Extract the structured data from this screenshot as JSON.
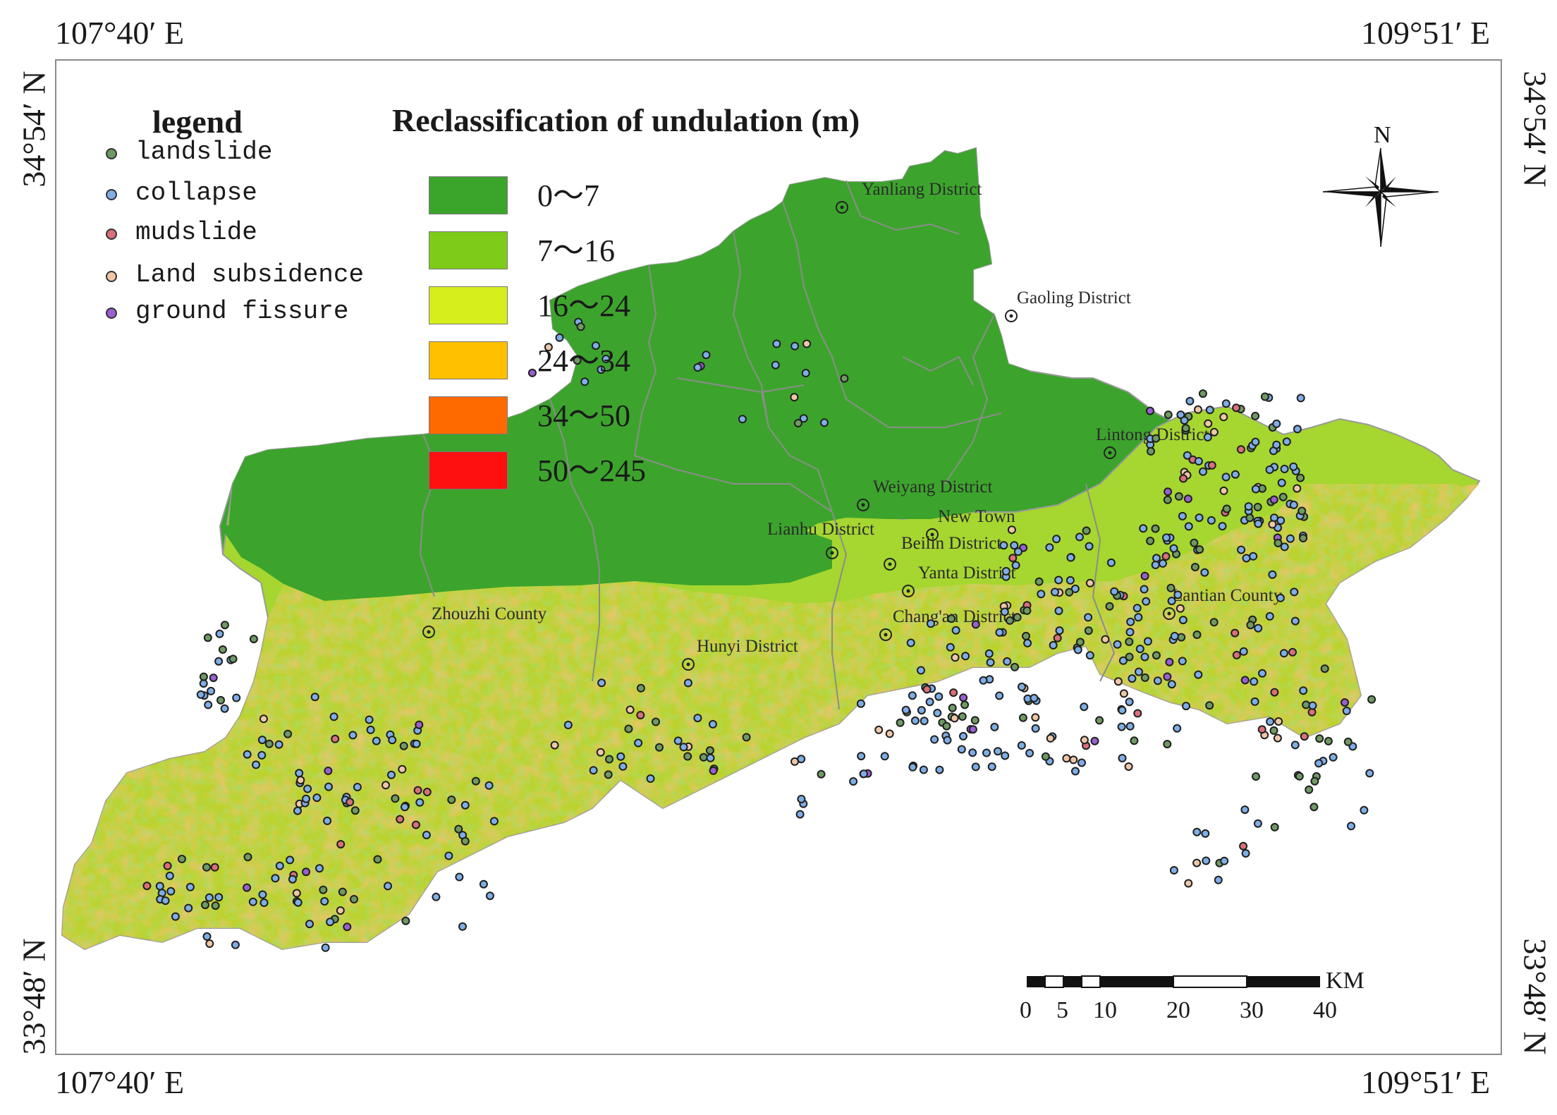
{
  "coords": {
    "top_left": "107°40′ E",
    "top_right": "109°51′ E",
    "bottom_left": "107°40′ E",
    "bottom_right": "109°51′ E",
    "left_top": "34°54′ N",
    "left_bottom": "33°48′ N",
    "right_top": "34°54′ N",
    "right_bottom": "33°48′ N"
  },
  "legend": {
    "title": "legend",
    "items": [
      {
        "label": "landslide",
        "color": "#6f9a63"
      },
      {
        "label": "collapse",
        "color": "#7eaee6"
      },
      {
        "label": "mudslide",
        "color": "#d9707a"
      },
      {
        "label": "Land subsidence",
        "color": "#f0c7a9"
      },
      {
        "label": "ground fissure",
        "color": "#9a5fd0"
      }
    ]
  },
  "classification": {
    "title": "Reclassification of undulation (m)",
    "classes": [
      {
        "label": "0～7",
        "color": "#3aa52a"
      },
      {
        "label": "7～16",
        "color": "#7fcb1a"
      },
      {
        "label": "16～24",
        "color": "#d6ee1c"
      },
      {
        "label": "24～34",
        "color": "#ffc000"
      },
      {
        "label": "34～50",
        "color": "#ff6a00"
      },
      {
        "label": "50～245",
        "color": "#ff1010"
      }
    ]
  },
  "north_label": "N",
  "districts": [
    "Yanliang District",
    "Gaoling District",
    "Lintong District",
    "Weiyang District",
    "Lianhu District",
    "New Town",
    "Beilin District",
    "Yanta District",
    "Lantian County",
    "Chang'an District",
    "Zhouzhi County",
    "Hunyi District"
  ],
  "scale_bar": {
    "unit": "KM",
    "ticks": [
      "0",
      "5",
      "10",
      "20",
      "30",
      "40"
    ]
  },
  "colors": {
    "plain": "#3ca42c",
    "mountain_light": "#a6d630",
    "mountain_mid": "#d2d62a",
    "mountain_warm": "#dba83a",
    "boundary": "#8c8c8c",
    "hazard_outline": "#1f1f1f"
  }
}
